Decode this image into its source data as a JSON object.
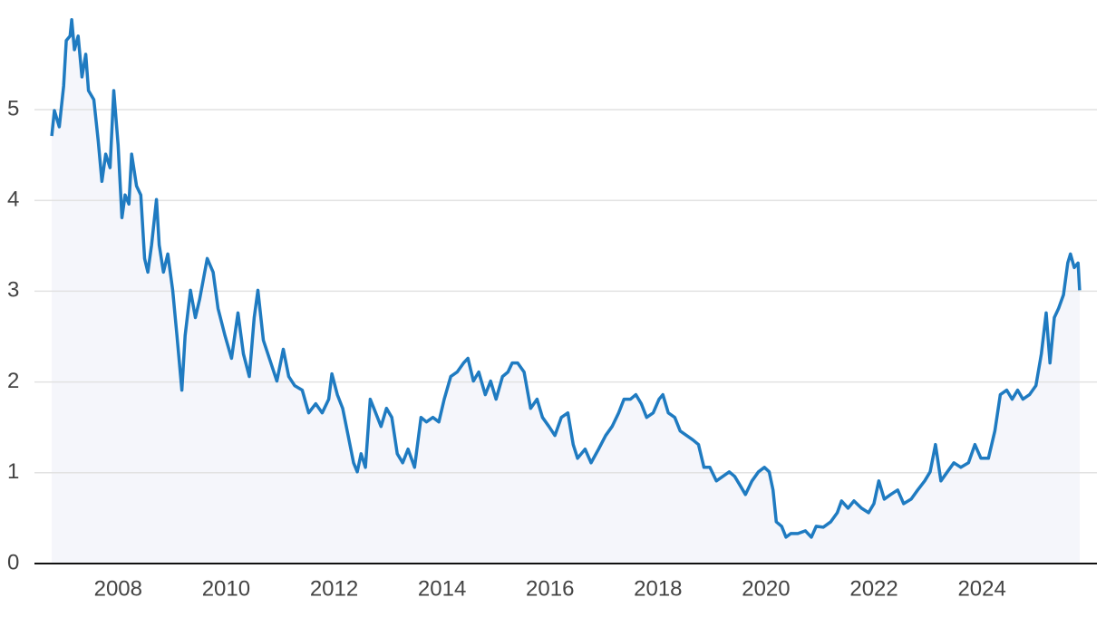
{
  "chart_data": {
    "type": "area-line",
    "color": "#1f7bc1",
    "fill": "#f5f6fb",
    "grid": true,
    "x": [
      2006.77,
      2006.82,
      2006.91,
      2006.99,
      2007.04,
      2007.11,
      2007.14,
      2007.19,
      2007.26,
      2007.33,
      2007.4,
      2007.45,
      2007.55,
      2007.63,
      2007.7,
      2007.77,
      2007.85,
      2007.92,
      2008.0,
      2008.07,
      2008.13,
      2008.2,
      2008.25,
      2008.34,
      2008.42,
      2008.49,
      2008.55,
      2008.62,
      2008.71,
      2008.76,
      2008.84,
      2008.92,
      2009.01,
      2009.09,
      2009.18,
      2009.24,
      2009.34,
      2009.43,
      2009.51,
      2009.65,
      2009.76,
      2009.85,
      2009.98,
      2010.1,
      2010.22,
      2010.32,
      2010.43,
      2010.52,
      2010.59,
      2010.69,
      2010.8,
      2010.94,
      2011.06,
      2011.16,
      2011.27,
      2011.41,
      2011.53,
      2011.66,
      2011.78,
      2011.9,
      2011.96,
      2012.06,
      2012.16,
      2012.26,
      2012.36,
      2012.43,
      2012.5,
      2012.58,
      2012.67,
      2012.77,
      2012.87,
      2012.97,
      2013.07,
      2013.17,
      2013.27,
      2013.37,
      2013.49,
      2013.61,
      2013.71,
      2013.83,
      2013.94,
      2014.04,
      2014.16,
      2014.28,
      2014.4,
      2014.48,
      2014.58,
      2014.68,
      2014.8,
      2014.9,
      2015.0,
      2015.12,
      2015.22,
      2015.3,
      2015.4,
      2015.52,
      2015.64,
      2015.76,
      2015.86,
      2015.98,
      2016.09,
      2016.21,
      2016.33,
      2016.43,
      2016.51,
      2016.65,
      2016.76,
      2016.9,
      2017.03,
      2017.15,
      2017.27,
      2017.37,
      2017.49,
      2017.59,
      2017.69,
      2017.79,
      2017.91,
      2018.02,
      2018.09,
      2018.19,
      2018.31,
      2018.41,
      2018.53,
      2018.65,
      2018.75,
      2018.85,
      2018.96,
      2019.08,
      2019.2,
      2019.32,
      2019.42,
      2019.52,
      2019.62,
      2019.74,
      2019.86,
      2019.97,
      2020.06,
      2020.13,
      2020.19,
      2020.29,
      2020.37,
      2020.46,
      2020.59,
      2020.73,
      2020.84,
      2020.93,
      2021.06,
      2021.2,
      2021.32,
      2021.4,
      2021.52,
      2021.63,
      2021.77,
      2021.9,
      2022.0,
      2022.09,
      2022.19,
      2022.31,
      2022.44,
      2022.55,
      2022.69,
      2022.81,
      2022.94,
      2023.04,
      2023.14,
      2023.24,
      2023.36,
      2023.48,
      2023.61,
      2023.75,
      2023.87,
      2023.98,
      2024.12,
      2024.24,
      2024.34,
      2024.46,
      2024.56,
      2024.66,
      2024.76,
      2024.88,
      2025.0,
      2025.1,
      2025.19,
      2025.26,
      2025.34,
      2025.42,
      2025.51,
      2025.59,
      2025.64,
      2025.71,
      2025.78,
      2025.81
    ],
    "values": [
      4.71,
      4.99,
      4.81,
      5.26,
      5.76,
      5.81,
      5.99,
      5.66,
      5.81,
      5.36,
      5.61,
      5.21,
      5.11,
      4.66,
      4.21,
      4.51,
      4.36,
      5.21,
      4.61,
      3.81,
      4.06,
      3.96,
      4.51,
      4.16,
      4.06,
      3.36,
      3.21,
      3.51,
      4.01,
      3.51,
      3.21,
      3.41,
      3.01,
      2.51,
      1.91,
      2.51,
      3.01,
      2.71,
      2.91,
      3.36,
      3.21,
      2.81,
      2.51,
      2.26,
      2.76,
      2.31,
      2.06,
      2.71,
      3.01,
      2.46,
      2.26,
      2.01,
      2.36,
      2.06,
      1.96,
      1.91,
      1.66,
      1.76,
      1.66,
      1.81,
      2.09,
      1.86,
      1.71,
      1.41,
      1.11,
      1.01,
      1.21,
      1.06,
      1.81,
      1.66,
      1.51,
      1.71,
      1.61,
      1.21,
      1.11,
      1.26,
      1.06,
      1.61,
      1.56,
      1.61,
      1.56,
      1.81,
      2.06,
      2.11,
      2.21,
      2.26,
      2.01,
      2.11,
      1.86,
      2.01,
      1.81,
      2.06,
      2.11,
      2.21,
      2.21,
      2.11,
      1.71,
      1.81,
      1.61,
      1.51,
      1.41,
      1.61,
      1.66,
      1.31,
      1.16,
      1.26,
      1.11,
      1.26,
      1.41,
      1.51,
      1.66,
      1.81,
      1.81,
      1.86,
      1.76,
      1.61,
      1.66,
      1.81,
      1.86,
      1.66,
      1.61,
      1.46,
      1.41,
      1.36,
      1.31,
      1.06,
      1.06,
      0.91,
      0.96,
      1.01,
      0.96,
      0.86,
      0.76,
      0.91,
      1.01,
      1.06,
      1.01,
      0.81,
      0.46,
      0.41,
      0.29,
      0.33,
      0.33,
      0.36,
      0.29,
      0.41,
      0.4,
      0.46,
      0.56,
      0.69,
      0.61,
      0.69,
      0.61,
      0.56,
      0.66,
      0.91,
      0.71,
      0.76,
      0.81,
      0.66,
      0.71,
      0.81,
      0.91,
      1.01,
      1.31,
      0.91,
      1.01,
      1.11,
      1.06,
      1.11,
      1.31,
      1.16,
      1.16,
      1.46,
      1.86,
      1.91,
      1.81,
      1.91,
      1.81,
      1.86,
      1.96,
      2.31,
      2.76,
      2.21,
      2.71,
      2.81,
      2.96,
      3.31,
      3.41,
      3.26,
      3.31,
      3.01
    ],
    "xlim": [
      2006.45,
      2026.13
    ],
    "xticks": [
      2008,
      2010,
      2012,
      2014,
      2016,
      2018,
      2020,
      2022,
      2024
    ],
    "ylim": [
      0,
      6
    ],
    "yticks": [
      0,
      1,
      2,
      3,
      4,
      5
    ]
  }
}
